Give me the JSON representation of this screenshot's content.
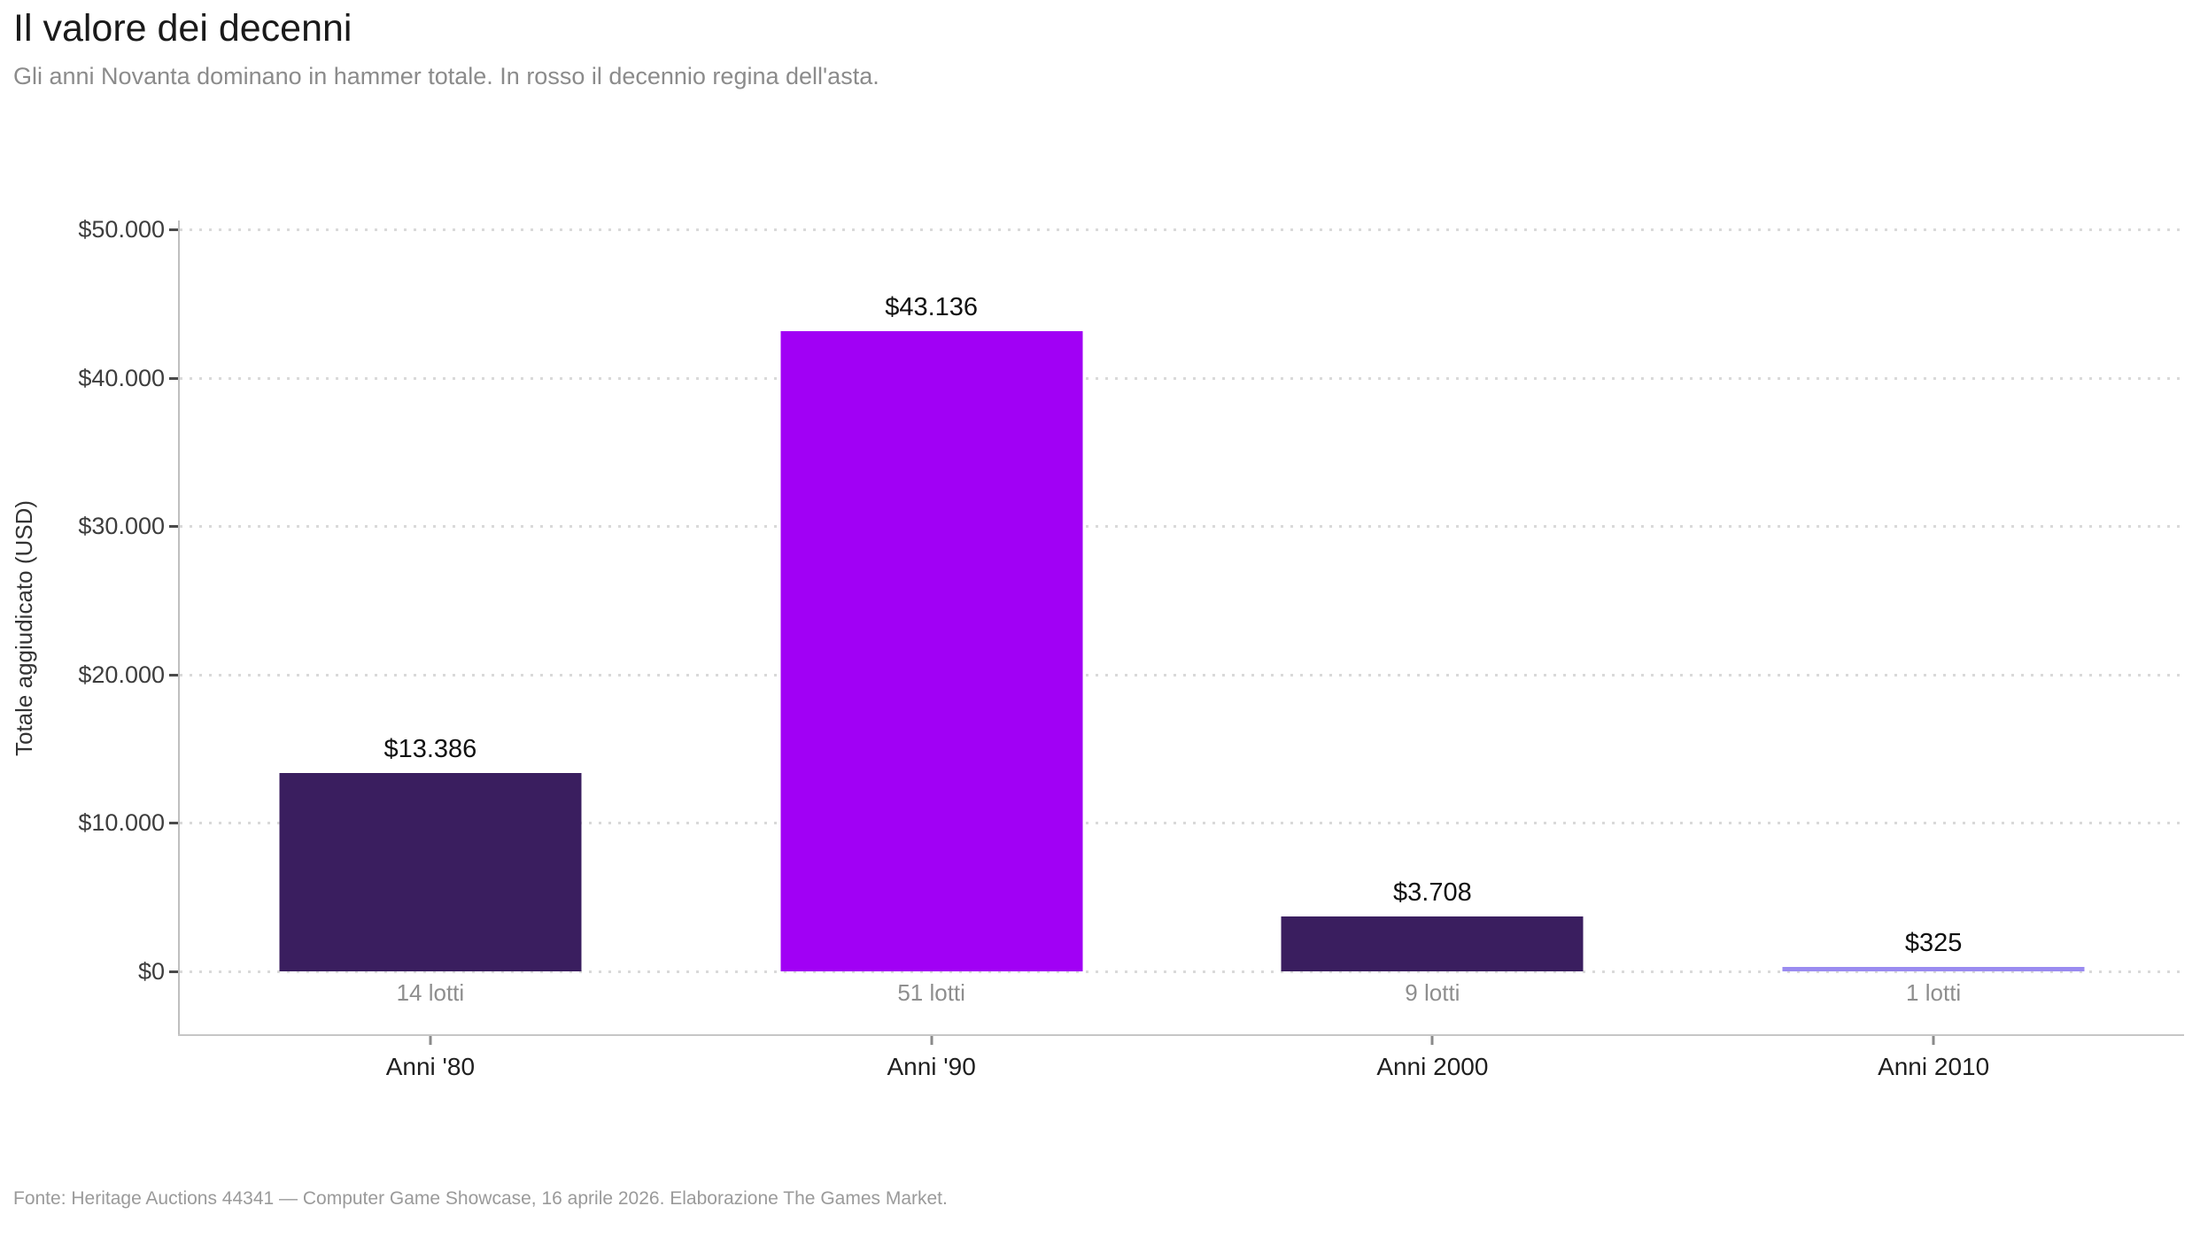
{
  "header": {
    "title": "Il valore dei decenni",
    "subtitle": "Gli anni Novanta dominano in hammer totale. In rosso il decennio regina dell'asta."
  },
  "footer": {
    "source": "Fonte: Heritage Auctions 44341 — Computer Game Showcase, 16 aprile 2026. Elaborazione The Games Market."
  },
  "chart_data": {
    "type": "bar",
    "title": "Il valore dei decenni",
    "subtitle": "Gli anni Novanta dominano in hammer totale. In rosso il decennio regina dell'asta.",
    "xlabel": "",
    "ylabel": "Totale aggiudicato (USD)",
    "categories": [
      "Anni '80",
      "Anni '90",
      "Anni 2000",
      "Anni 2010"
    ],
    "values": [
      13386,
      43136,
      3708,
      325
    ],
    "value_labels": [
      "$13.386",
      "$43.136",
      "$3.708",
      "$325"
    ],
    "count_labels": [
      "14 lotti",
      "51 lotti",
      "9 lotti",
      "1 lotti"
    ],
    "bar_colors": [
      "#3A1E5F",
      "#A100F5",
      "#3A1E5F",
      "#9A8BF0"
    ],
    "highlight_index": 1,
    "ylim": [
      0,
      50000
    ],
    "yticks": [
      0,
      10000,
      20000,
      30000,
      40000,
      50000
    ],
    "ytick_labels": [
      "$0",
      "$10.000",
      "$20.000",
      "$30.000",
      "$40.000",
      "$50.000"
    ],
    "grid": "horizontal-dotted",
    "legend": "none"
  }
}
